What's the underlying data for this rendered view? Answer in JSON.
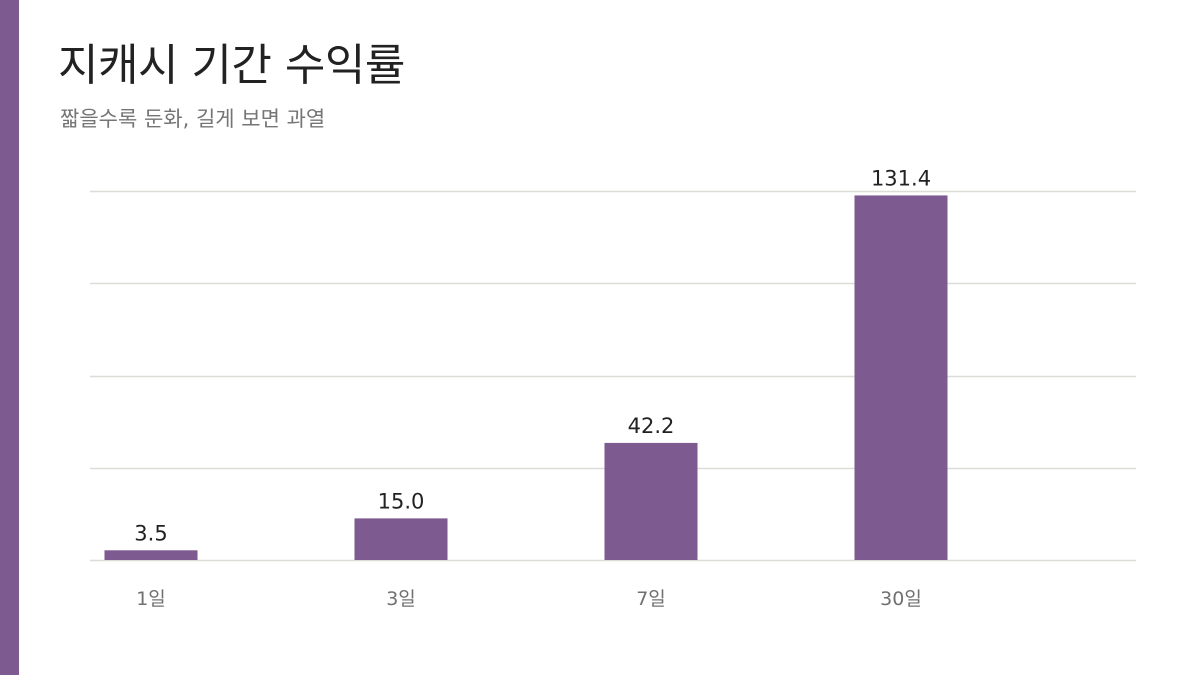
{
  "theme": {
    "accent": "#7d5a8f",
    "bar": "#7d5a8f",
    "grid": "#dcdcd8",
    "value_text": "#222222",
    "tick_text": "#707070"
  },
  "chart_data": {
    "type": "bar",
    "title": "지캐시 기간 수익률",
    "subtitle": "짧을수록 둔화, 길게 보면 과열",
    "categories": [
      "1일",
      "3일",
      "7일",
      "30일"
    ],
    "values": [
      3.5,
      15.0,
      42.2,
      131.4
    ],
    "value_labels": [
      "3.5",
      "15.0",
      "42.2",
      "131.4"
    ],
    "ylim": [
      0,
      133
    ],
    "grid": true,
    "legend": "none"
  }
}
